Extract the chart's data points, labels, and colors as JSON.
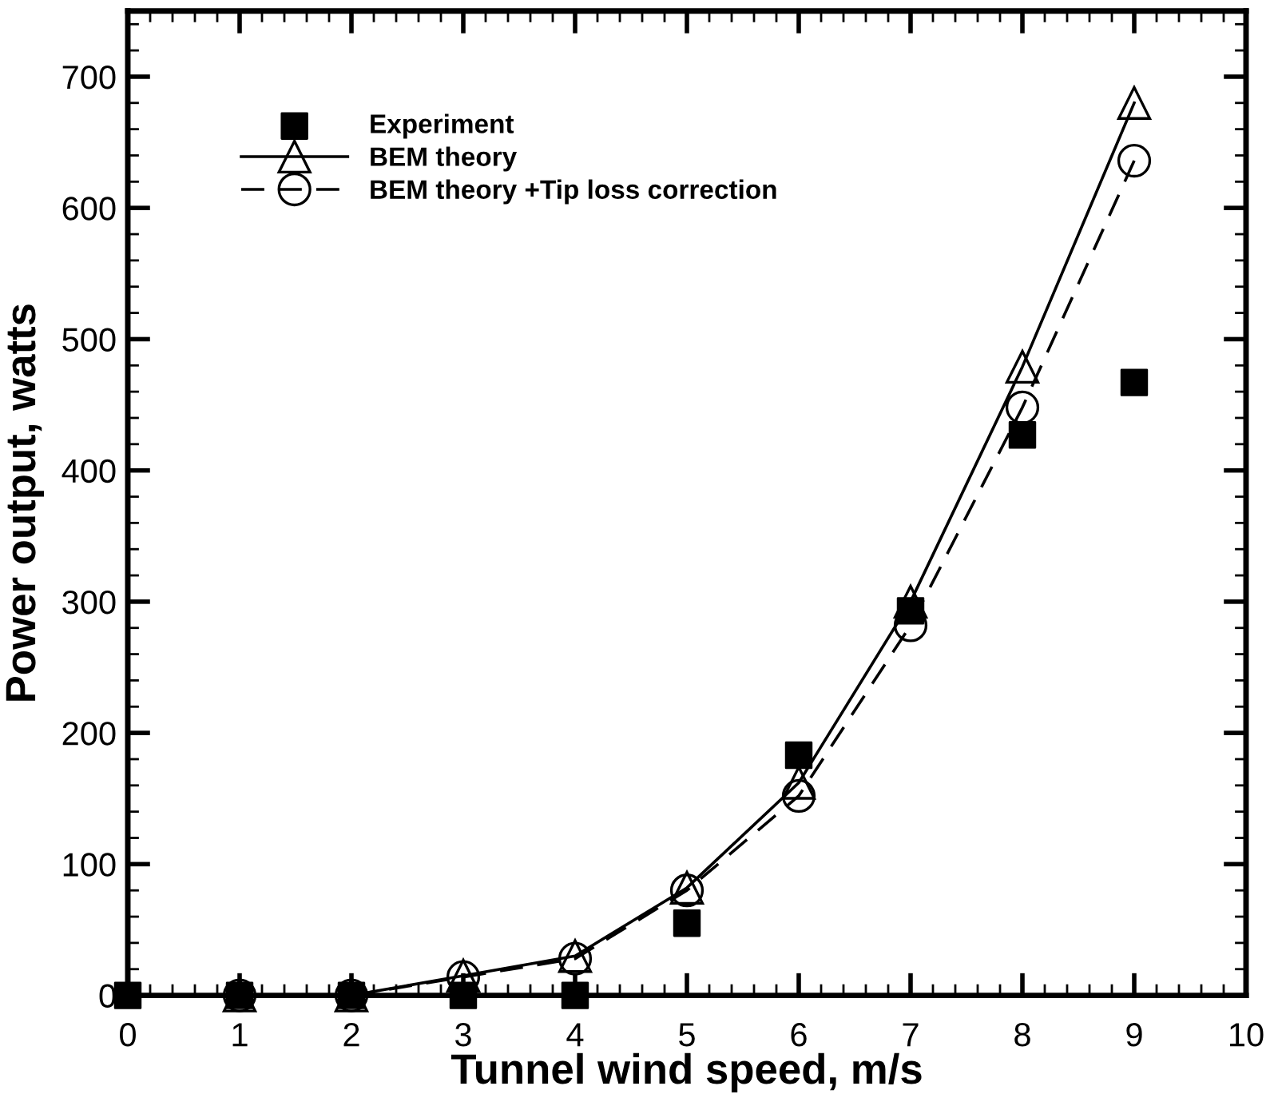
{
  "chart_data": {
    "type": "line",
    "xlabel": "Tunnel wind speed, m/s",
    "ylabel": "Power output, watts",
    "xlim": [
      0,
      10
    ],
    "xticks": [
      0,
      1,
      2,
      3,
      4,
      5,
      6,
      7,
      8,
      9,
      10
    ],
    "ylim": [
      0,
      750
    ],
    "yticks": [
      0,
      100,
      200,
      300,
      400,
      500,
      600,
      700
    ],
    "grid": false,
    "legend": "top left",
    "series": [
      {
        "name": "Experiment",
        "type": "scatter",
        "marker": "square",
        "color": "#000000",
        "x": [
          0,
          1,
          2,
          3,
          4,
          5,
          6,
          7,
          8,
          9
        ],
        "values": [
          0,
          0,
          0,
          0,
          0,
          55,
          183,
          293,
          427,
          467
        ]
      },
      {
        "name": "BEM theory",
        "marker": "triangle",
        "line_style": "solid",
        "color": "#000000",
        "x": [
          1,
          2,
          3,
          4,
          5,
          6,
          7,
          8,
          9
        ],
        "values": [
          0,
          0,
          15,
          30,
          82,
          162,
          300,
          479,
          680
        ]
      },
      {
        "name": "BEM theory +Tip loss correction",
        "marker": "circle",
        "line_style": "dashed",
        "color": "#000000",
        "x": [
          1,
          2,
          3,
          4,
          5,
          6,
          7,
          8,
          9
        ],
        "values": [
          0,
          0,
          14,
          28,
          80,
          152,
          282,
          448,
          636
        ]
      }
    ]
  }
}
